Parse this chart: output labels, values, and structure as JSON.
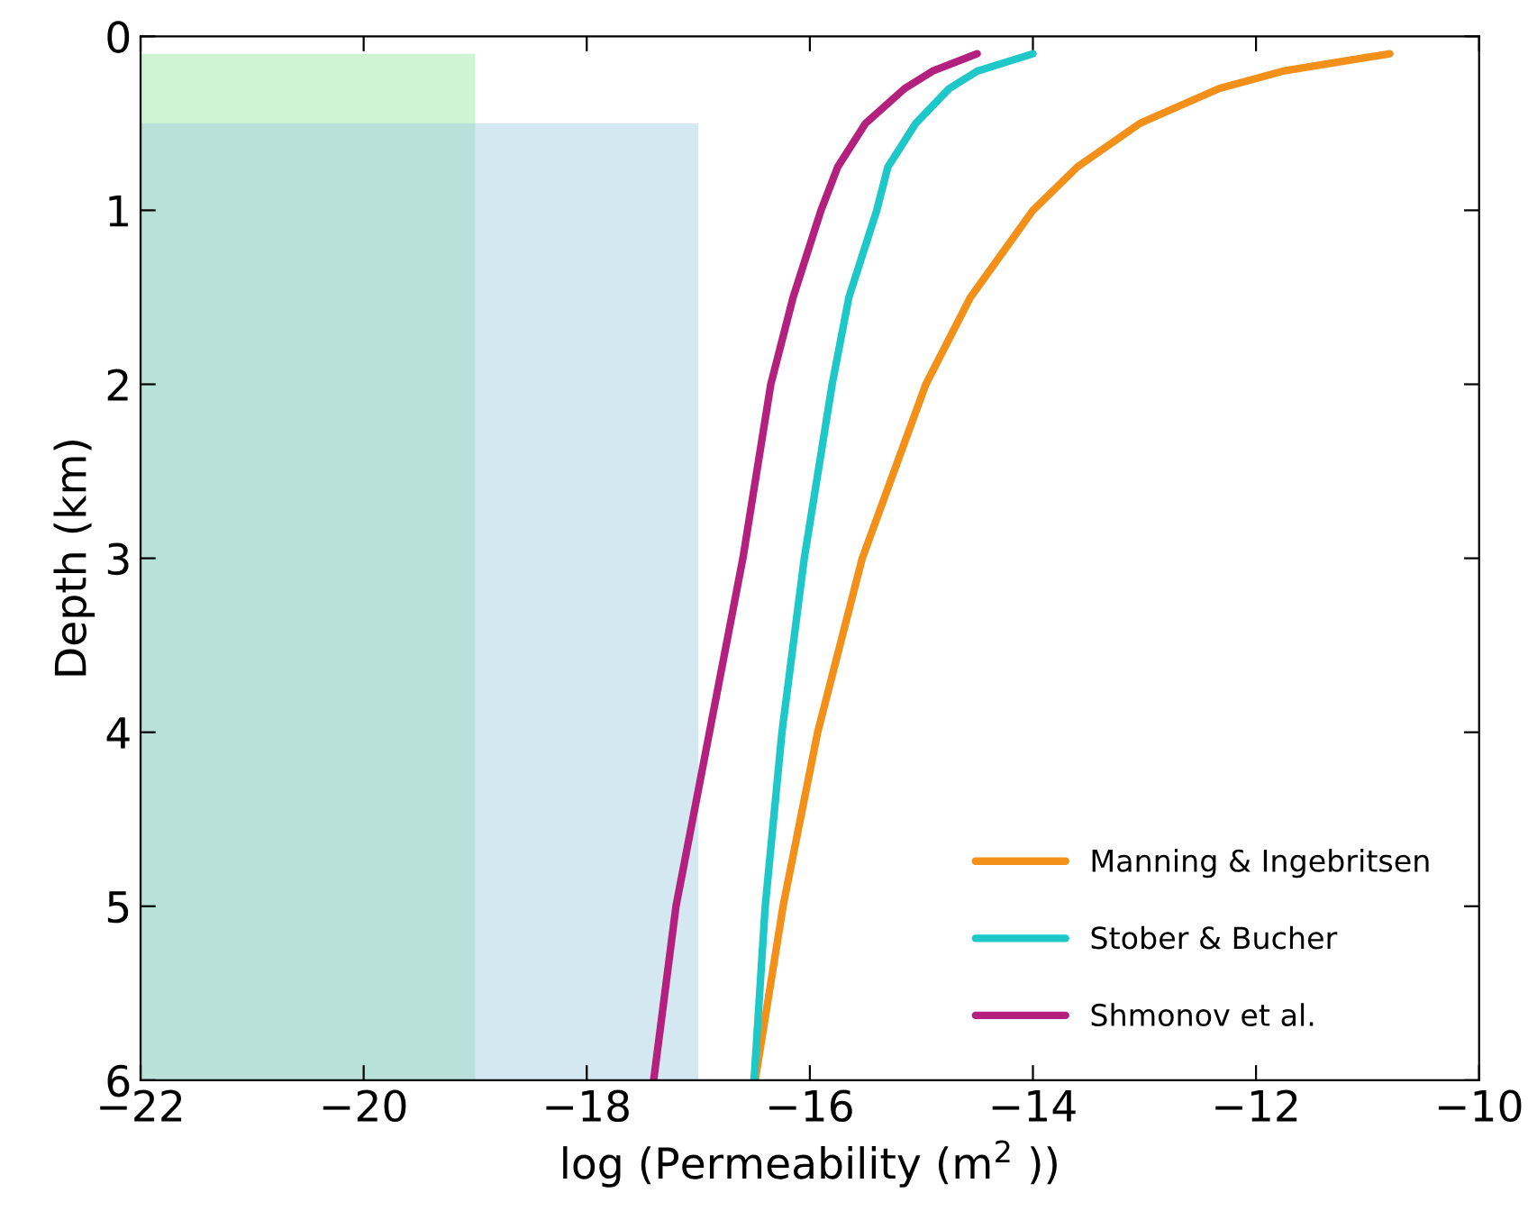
{
  "chart_data": {
    "type": "line",
    "xlabel": "log (Permeability (m$^{2}$ ))",
    "ylabel": "Depth (km)",
    "xlim": [
      -22,
      -10
    ],
    "ylim": [
      6,
      0
    ],
    "xticks": [
      {
        "value": -22,
        "label": "−22"
      },
      {
        "value": -20,
        "label": "−20"
      },
      {
        "value": -18,
        "label": "−18"
      },
      {
        "value": -16,
        "label": "−16"
      },
      {
        "value": -14,
        "label": "−14"
      },
      {
        "value": -12,
        "label": "−12"
      },
      {
        "value": -10,
        "label": "−10"
      }
    ],
    "yticks": [
      0,
      1,
      2,
      3,
      4,
      5,
      6
    ],
    "grid": false,
    "legend": "bottom right",
    "series": [
      {
        "type": "area",
        "color": "#90e8a0",
        "x": [
          -22,
          -22,
          -19,
          -19
        ],
        "values": [
          6,
          0.1,
          0.1,
          6
        ]
      },
      {
        "type": "area",
        "color": "#a0cce0",
        "x": [
          -22,
          -22,
          -17,
          -17
        ],
        "values": [
          6,
          0.5,
          0.5,
          6
        ]
      },
      {
        "name": "Manning & Ingebritsen",
        "color": "#f39019",
        "x": [
          -10.8,
          -11.76,
          -12.33,
          -13.04,
          -13.6,
          -14.0,
          -14.56,
          -14.96,
          -15.53,
          -15.93,
          -16.24,
          -16.49
        ],
        "values": [
          0.1,
          0.2,
          0.3,
          0.5,
          0.75,
          1,
          1.5,
          2,
          3,
          4,
          5,
          6
        ]
      },
      {
        "name": "Stober & Bucher",
        "color": "#1ec8c8",
        "x": [
          -14.0,
          -14.5,
          -14.75,
          -15.05,
          -15.3,
          -15.4,
          -15.65,
          -15.8,
          -16.05,
          -16.25,
          -16.4,
          -16.5
        ],
        "values": [
          0.1,
          0.2,
          0.3,
          0.5,
          0.75,
          1,
          1.5,
          2,
          3,
          4,
          5,
          6
        ]
      },
      {
        "name": "Shmonov et al.",
        "color": "#b4207e",
        "x": [
          -14.5,
          -14.9,
          -15.15,
          -15.5,
          -15.75,
          -15.9,
          -16.15,
          -16.35,
          -16.6,
          -16.9,
          -17.2,
          -17.4
        ],
        "values": [
          0.1,
          0.2,
          0.3,
          0.5,
          0.75,
          1,
          1.5,
          2,
          3,
          4,
          5,
          6
        ]
      }
    ]
  }
}
